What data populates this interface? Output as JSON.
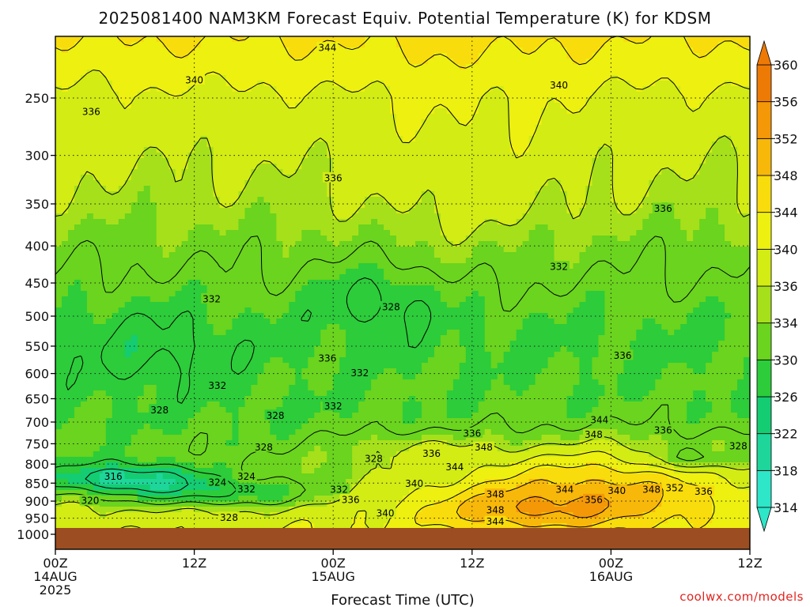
{
  "title": "2025081400 NAM3KM Forecast Equiv. Potential Temperature (K) for KDSM",
  "credit": "coolwx.com/models",
  "chart_data": {
    "type": "heatmap",
    "title": "2025081400 NAM3KM Forecast Equiv. Potential Temperature (K) for KDSM",
    "xlabel": "Forecast Time (UTC)",
    "ylabel": "",
    "x_ticks": [
      {
        "hour": 0,
        "lines": [
          "00Z",
          "14AUG",
          "2025"
        ]
      },
      {
        "hour": 12,
        "lines": [
          "12Z"
        ]
      },
      {
        "hour": 24,
        "lines": [
          "00Z",
          "15AUG"
        ]
      },
      {
        "hour": 36,
        "lines": [
          "12Z"
        ]
      },
      {
        "hour": 48,
        "lines": [
          "00Z",
          "16AUG"
        ]
      },
      {
        "hour": 60,
        "lines": [
          "12Z"
        ]
      }
    ],
    "xlim": [
      0,
      60
    ],
    "y_ticks": [
      250,
      300,
      350,
      400,
      450,
      500,
      550,
      600,
      650,
      700,
      750,
      800,
      850,
      900,
      950,
      1000
    ],
    "ylim": [
      200,
      1000
    ],
    "y_scale": "log-pressure",
    "grid": true,
    "surface_pressure": 975,
    "colorbar": {
      "levels": [
        314,
        318,
        322,
        326,
        330,
        334,
        336,
        340,
        344,
        348,
        352,
        356,
        360
      ],
      "colors": [
        "#2ee6c8",
        "#1ed69a",
        "#14cc72",
        "#2ccc3a",
        "#6ad41e",
        "#a6e01a",
        "#d2ec14",
        "#eef010",
        "#f8dc0c",
        "#f8b80a",
        "#f49808",
        "#ee7a06"
      ],
      "extend": "both"
    },
    "contour_labels": [
      {
        "x": 23.5,
        "p": 213,
        "text": "344"
      },
      {
        "x": 12.0,
        "p": 236,
        "text": "340"
      },
      {
        "x": 43.5,
        "p": 240,
        "text": "340"
      },
      {
        "x": 3.1,
        "p": 261,
        "text": "336"
      },
      {
        "x": 24.0,
        "p": 322,
        "text": "336"
      },
      {
        "x": 52.5,
        "p": 355,
        "text": "336"
      },
      {
        "x": 43.5,
        "p": 427,
        "text": "332"
      },
      {
        "x": 13.5,
        "p": 473,
        "text": "332"
      },
      {
        "x": 29.0,
        "p": 485,
        "text": "328"
      },
      {
        "x": 23.5,
        "p": 571,
        "text": "336"
      },
      {
        "x": 49.0,
        "p": 566,
        "text": "336"
      },
      {
        "x": 26.3,
        "p": 598,
        "text": "332"
      },
      {
        "x": 14.0,
        "p": 623,
        "text": "332"
      },
      {
        "x": 9.0,
        "p": 673,
        "text": "328"
      },
      {
        "x": 19.0,
        "p": 685,
        "text": "328"
      },
      {
        "x": 24.0,
        "p": 665,
        "text": "332"
      },
      {
        "x": 47.0,
        "p": 695,
        "text": "344"
      },
      {
        "x": 36.0,
        "p": 725,
        "text": "336"
      },
      {
        "x": 46.5,
        "p": 728,
        "text": "348"
      },
      {
        "x": 52.5,
        "p": 718,
        "text": "336"
      },
      {
        "x": 18.0,
        "p": 758,
        "text": "328"
      },
      {
        "x": 37.0,
        "p": 758,
        "text": "348"
      },
      {
        "x": 32.5,
        "p": 773,
        "text": "336"
      },
      {
        "x": 27.5,
        "p": 786,
        "text": "328"
      },
      {
        "x": 59.0,
        "p": 755,
        "text": "328"
      },
      {
        "x": 34.5,
        "p": 807,
        "text": "344"
      },
      {
        "x": 5.0,
        "p": 831,
        "text": "316"
      },
      {
        "x": 16.5,
        "p": 831,
        "text": "324"
      },
      {
        "x": 14.0,
        "p": 847,
        "text": "324"
      },
      {
        "x": 31.0,
        "p": 850,
        "text": "340"
      },
      {
        "x": 16.5,
        "p": 865,
        "text": "332"
      },
      {
        "x": 24.5,
        "p": 867,
        "text": "332"
      },
      {
        "x": 44.0,
        "p": 867,
        "text": "344"
      },
      {
        "x": 48.5,
        "p": 870,
        "text": "340"
      },
      {
        "x": 51.5,
        "p": 867,
        "text": "348"
      },
      {
        "x": 53.5,
        "p": 862,
        "text": "352"
      },
      {
        "x": 56.0,
        "p": 872,
        "text": "336"
      },
      {
        "x": 38.0,
        "p": 880,
        "text": "348"
      },
      {
        "x": 3.0,
        "p": 898,
        "text": "320"
      },
      {
        "x": 25.5,
        "p": 895,
        "text": "336"
      },
      {
        "x": 46.5,
        "p": 895,
        "text": "356"
      },
      {
        "x": 38.0,
        "p": 925,
        "text": "348"
      },
      {
        "x": 28.5,
        "p": 935,
        "text": "340"
      },
      {
        "x": 15.0,
        "p": 947,
        "text": "328"
      },
      {
        "x": 38.0,
        "p": 960,
        "text": "344"
      }
    ]
  },
  "colors": {
    "ground": "#9c4e22",
    "text": "#111111",
    "credit": "#e2241f"
  }
}
